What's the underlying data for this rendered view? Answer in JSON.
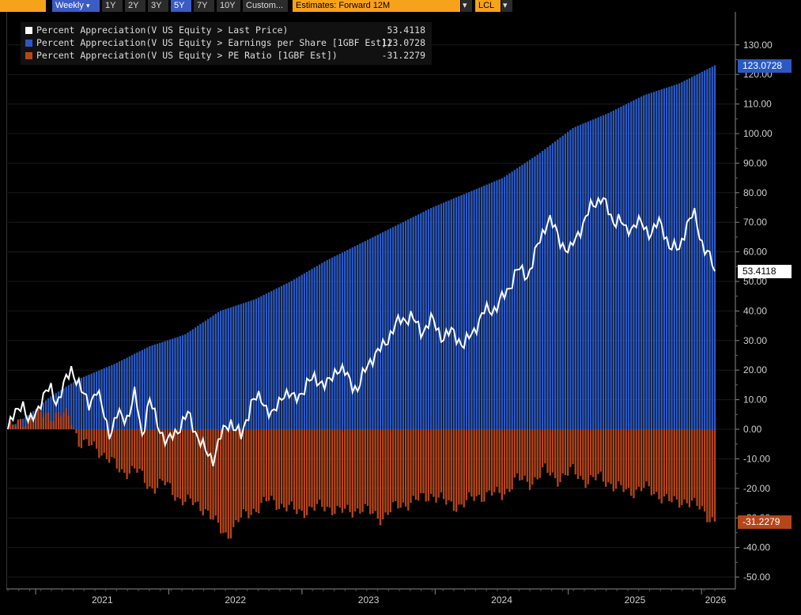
{
  "toolbar": {
    "weekly": "Weekly",
    "dropdown_arrow": "▾",
    "periods": [
      "1Y",
      "2Y",
      "3Y",
      "5Y",
      "7Y",
      "10Y"
    ],
    "selected_period": "5Y",
    "custom": "Custom...",
    "estimates": "Estimates: Forward 12M",
    "currency": "LCL"
  },
  "colors": {
    "price": "#ffffff",
    "eps": "#2b59c3",
    "pe": "#b5461c",
    "background": "#000000"
  },
  "legend": [
    {
      "name": "Percent Appreciation(V US Equity > Last Price)",
      "value": "53.4118"
    },
    {
      "name": "Percent Appreciation(V US Equity > Earnings per Share [1GBF Est])",
      "value": "123.0728"
    },
    {
      "name": "Percent Appreciation(V US Equity > PE Ratio [1GBF Est])",
      "value": "-31.2279"
    }
  ],
  "chart_data": {
    "type": "bar",
    "frequency": "weekly",
    "x_range": [
      "2020-10",
      "2026-02"
    ],
    "ylim": [
      -50,
      135
    ],
    "yticks": [
      "130.00",
      "120.00",
      "110.00",
      "100.00",
      "90.00",
      "80.00",
      "70.00",
      "60.00",
      "50.00",
      "40.00",
      "30.00",
      "20.00",
      "10.00",
      "0.00",
      "-10.00",
      "-20.00",
      "-30.00",
      "-40.00",
      "-50.00"
    ],
    "xlabels": [
      "2021",
      "2022",
      "2023",
      "2024",
      "2025",
      "2026"
    ],
    "last_values": {
      "price": "53.4118",
      "eps": "123.0728",
      "pe": "-31.2279"
    },
    "series": [
      {
        "name": "Last Price",
        "style": "line",
        "anchors": [
          [
            0,
            0
          ],
          [
            0.02,
            10
          ],
          [
            0.03,
            1
          ],
          [
            0.045,
            9
          ],
          [
            0.06,
            14
          ],
          [
            0.07,
            9
          ],
          [
            0.08,
            15
          ],
          [
            0.09,
            21
          ],
          [
            0.105,
            12
          ],
          [
            0.115,
            9
          ],
          [
            0.125,
            13
          ],
          [
            0.135,
            6
          ],
          [
            0.145,
            -2
          ],
          [
            0.155,
            5
          ],
          [
            0.17,
            4
          ],
          [
            0.18,
            12
          ],
          [
            0.19,
            -2
          ],
          [
            0.2,
            10
          ],
          [
            0.21,
            3
          ],
          [
            0.225,
            -5
          ],
          [
            0.24,
            0
          ],
          [
            0.255,
            5
          ],
          [
            0.27,
            -3
          ],
          [
            0.28,
            -8
          ],
          [
            0.29,
            -10
          ],
          [
            0.3,
            -3
          ],
          [
            0.315,
            3
          ],
          [
            0.33,
            -3
          ],
          [
            0.345,
            10
          ],
          [
            0.36,
            10
          ],
          [
            0.375,
            4
          ],
          [
            0.39,
            13
          ],
          [
            0.405,
            10
          ],
          [
            0.42,
            14
          ],
          [
            0.435,
            18
          ],
          [
            0.45,
            14
          ],
          [
            0.465,
            21
          ],
          [
            0.48,
            18
          ],
          [
            0.495,
            13
          ],
          [
            0.51,
            23
          ],
          [
            0.525,
            26
          ],
          [
            0.54,
            32
          ],
          [
            0.555,
            37
          ],
          [
            0.57,
            38
          ],
          [
            0.585,
            33
          ],
          [
            0.6,
            37
          ],
          [
            0.615,
            31
          ],
          [
            0.63,
            33
          ],
          [
            0.645,
            28
          ],
          [
            0.66,
            34
          ],
          [
            0.675,
            40
          ],
          [
            0.69,
            41
          ],
          [
            0.705,
            46
          ],
          [
            0.72,
            54
          ],
          [
            0.735,
            52
          ],
          [
            0.75,
            62
          ],
          [
            0.765,
            72
          ],
          [
            0.78,
            64
          ],
          [
            0.795,
            60
          ],
          [
            0.81,
            68
          ],
          [
            0.825,
            75
          ],
          [
            0.84,
            79
          ],
          [
            0.855,
            70
          ],
          [
            0.865,
            72
          ],
          [
            0.875,
            66
          ],
          [
            0.89,
            71
          ],
          [
            0.905,
            66
          ],
          [
            0.92,
            70
          ],
          [
            0.935,
            63
          ],
          [
            0.95,
            60
          ],
          [
            0.96,
            70
          ],
          [
            0.97,
            73
          ],
          [
            0.98,
            64
          ],
          [
            0.99,
            60
          ],
          [
            1.0,
            53.4118
          ]
        ]
      },
      {
        "name": "Earnings per Share [1GBF Est]",
        "style": "bar",
        "anchors": [
          [
            0,
            0
          ],
          [
            0.03,
            5
          ],
          [
            0.06,
            11
          ],
          [
            0.1,
            17
          ],
          [
            0.15,
            22
          ],
          [
            0.2,
            28
          ],
          [
            0.25,
            32
          ],
          [
            0.3,
            40
          ],
          [
            0.35,
            44
          ],
          [
            0.4,
            50
          ],
          [
            0.45,
            57
          ],
          [
            0.5,
            63
          ],
          [
            0.55,
            69
          ],
          [
            0.6,
            75
          ],
          [
            0.65,
            80
          ],
          [
            0.7,
            85
          ],
          [
            0.75,
            93
          ],
          [
            0.8,
            102
          ],
          [
            0.85,
            107
          ],
          [
            0.9,
            113
          ],
          [
            0.95,
            117
          ],
          [
            1.0,
            123.0728
          ]
        ]
      },
      {
        "name": "PE Ratio [1GBF Est]",
        "style": "bar",
        "anchors": [
          [
            0,
            0
          ],
          [
            0.04,
            5
          ],
          [
            0.08,
            5
          ],
          [
            0.09,
            3
          ],
          [
            0.1,
            -4
          ],
          [
            0.12,
            -6
          ],
          [
            0.14,
            -9
          ],
          [
            0.16,
            -15
          ],
          [
            0.18,
            -13
          ],
          [
            0.2,
            -20
          ],
          [
            0.22,
            -18
          ],
          [
            0.24,
            -23
          ],
          [
            0.26,
            -25
          ],
          [
            0.28,
            -27
          ],
          [
            0.3,
            -34
          ],
          [
            0.31,
            -36
          ],
          [
            0.33,
            -30
          ],
          [
            0.35,
            -27
          ],
          [
            0.37,
            -24
          ],
          [
            0.39,
            -26
          ],
          [
            0.41,
            -28
          ],
          [
            0.43,
            -27
          ],
          [
            0.45,
            -26
          ],
          [
            0.47,
            -28
          ],
          [
            0.5,
            -27
          ],
          [
            0.53,
            -30
          ],
          [
            0.55,
            -26
          ],
          [
            0.58,
            -24
          ],
          [
            0.6,
            -22
          ],
          [
            0.62,
            -25
          ],
          [
            0.64,
            -26
          ],
          [
            0.66,
            -23
          ],
          [
            0.68,
            -22
          ],
          [
            0.7,
            -22
          ],
          [
            0.72,
            -17
          ],
          [
            0.74,
            -18
          ],
          [
            0.76,
            -14
          ],
          [
            0.78,
            -17
          ],
          [
            0.8,
            -14
          ],
          [
            0.82,
            -18
          ],
          [
            0.84,
            -16
          ],
          [
            0.86,
            -20
          ],
          [
            0.88,
            -21
          ],
          [
            0.9,
            -20
          ],
          [
            0.92,
            -22
          ],
          [
            0.94,
            -25
          ],
          [
            0.96,
            -24
          ],
          [
            0.98,
            -27
          ],
          [
            1.0,
            -31.2279
          ]
        ]
      }
    ]
  }
}
